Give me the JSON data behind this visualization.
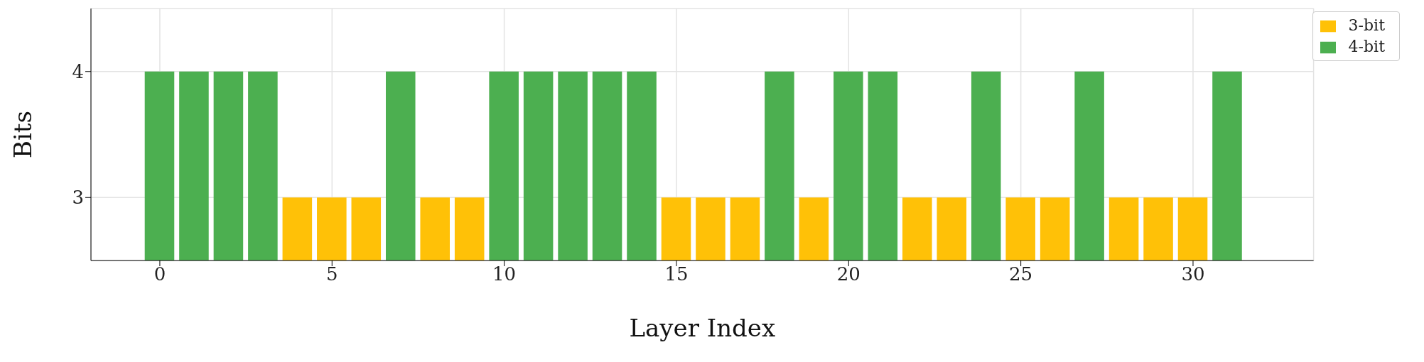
{
  "chart_data": {
    "type": "bar",
    "xlabel": "Layer Index",
    "ylabel": "Bits",
    "x": [
      0,
      1,
      2,
      3,
      4,
      5,
      6,
      7,
      8,
      9,
      10,
      11,
      12,
      13,
      14,
      15,
      16,
      17,
      18,
      19,
      20,
      21,
      22,
      23,
      24,
      25,
      26,
      27,
      28,
      29,
      30,
      31
    ],
    "series": [
      {
        "name": "4-bit",
        "color": "#4caf50",
        "values": [
          4,
          4,
          4,
          4,
          null,
          null,
          null,
          4,
          null,
          null,
          4,
          4,
          4,
          4,
          4,
          null,
          null,
          null,
          4,
          null,
          4,
          4,
          null,
          null,
          4,
          null,
          null,
          4,
          null,
          null,
          null,
          4
        ]
      },
      {
        "name": "3-bit",
        "color": "#ffc107",
        "values": [
          null,
          null,
          null,
          null,
          3,
          3,
          3,
          null,
          3,
          3,
          null,
          null,
          null,
          null,
          null,
          3,
          3,
          3,
          null,
          3,
          null,
          null,
          3,
          3,
          null,
          3,
          3,
          null,
          3,
          3,
          3,
          null
        ]
      }
    ],
    "xlim": [
      -2,
      33.5
    ],
    "xticks": [
      0,
      5,
      10,
      15,
      20,
      25,
      30
    ],
    "ylim": [
      2.5,
      4.5
    ],
    "yticks": [
      3,
      4
    ],
    "grid": true,
    "legend": "top right"
  }
}
